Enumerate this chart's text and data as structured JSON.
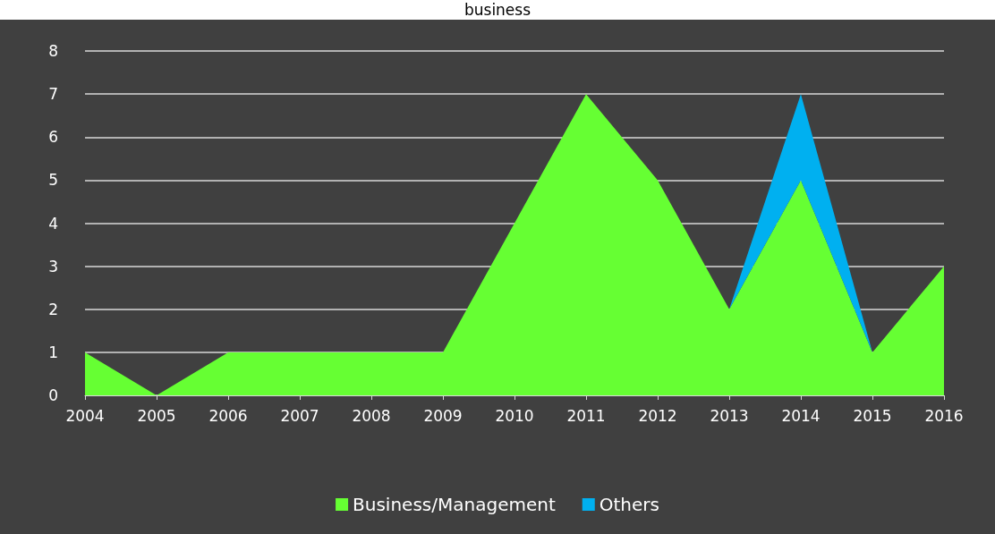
{
  "chart_data": {
    "type": "area",
    "title": "business",
    "stacked": true,
    "categories": [
      "2004",
      "2005",
      "2006",
      "2007",
      "2008",
      "2009",
      "2010",
      "2011",
      "2012",
      "2013",
      "2014",
      "2015",
      "2016"
    ],
    "series": [
      {
        "name": "Business/Management",
        "color": "#66ff33",
        "values": [
          1,
          0,
          1,
          1,
          1,
          1,
          4,
          7,
          5,
          2,
          5,
          1,
          3
        ]
      },
      {
        "name": "Others",
        "color": "#00b0f0",
        "values": [
          null,
          null,
          null,
          null,
          null,
          null,
          null,
          null,
          null,
          0,
          2,
          0,
          null
        ]
      }
    ],
    "ylim": [
      0,
      8
    ],
    "yticks": [
      0,
      1,
      2,
      3,
      4,
      5,
      6,
      7,
      8
    ],
    "grid": "y",
    "legend": "bottom",
    "marker": "none"
  }
}
